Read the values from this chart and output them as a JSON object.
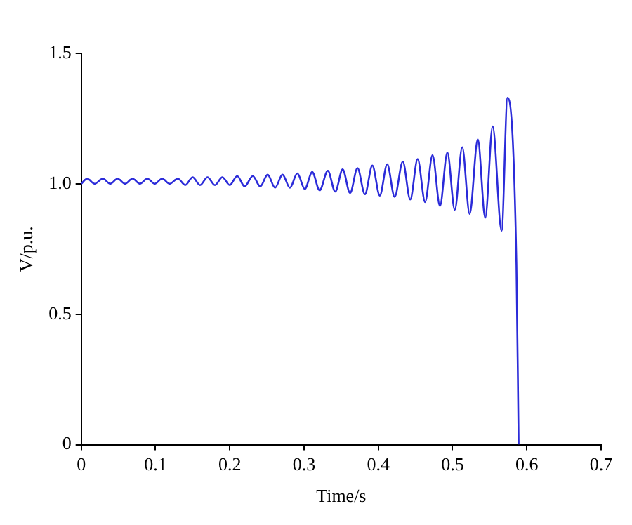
{
  "chart_data": {
    "type": "line",
    "xlabel": "Time/s",
    "ylabel": "V/p.u.",
    "xlim": [
      0,
      0.7
    ],
    "ylim": [
      0,
      1.5
    ],
    "xticks": [
      0,
      0.1,
      0.2,
      0.3,
      0.4,
      0.5,
      0.6,
      0.7
    ],
    "yticks": [
      0,
      0.5,
      {
        "value": 1,
        "label": "1.0"
      },
      1.5
    ],
    "grid": false,
    "legend": false,
    "marker": "none",
    "line_style": "solid",
    "series": [
      {
        "color": "#2b2bd9",
        "x": [
          0,
          0.008,
          0.018,
          0.029,
          0.039,
          0.049,
          0.059,
          0.069,
          0.079,
          0.089,
          0.099,
          0.109,
          0.119,
          0.13,
          0.14,
          0.15,
          0.16,
          0.17,
          0.18,
          0.19,
          0.2,
          0.21,
          0.22,
          0.231,
          0.241,
          0.251,
          0.261,
          0.271,
          0.281,
          0.291,
          0.301,
          0.311,
          0.321,
          0.332,
          0.342,
          0.352,
          0.362,
          0.372,
          0.382,
          0.392,
          0.402,
          0.412,
          0.422,
          0.433,
          0.443,
          0.453,
          0.463,
          0.473,
          0.483,
          0.493,
          0.503,
          0.513,
          0.523,
          0.534,
          0.544,
          0.554,
          0.566,
          0.574,
          0.586,
          0.589
        ],
        "values": [
          1.0,
          1.02,
          1.0,
          1.02,
          1.0,
          1.02,
          1.0,
          1.02,
          1.0,
          1.02,
          1.0,
          1.02,
          1.0,
          1.02,
          0.995,
          1.025,
          0.995,
          1.025,
          0.995,
          1.025,
          0.995,
          1.03,
          0.99,
          1.03,
          0.99,
          1.035,
          0.985,
          1.035,
          0.985,
          1.04,
          0.98,
          1.045,
          0.975,
          1.05,
          0.97,
          1.055,
          0.965,
          1.06,
          0.96,
          1.07,
          0.955,
          1.075,
          0.95,
          1.085,
          0.94,
          1.095,
          0.93,
          1.11,
          0.915,
          1.12,
          0.9,
          1.14,
          0.885,
          1.17,
          0.87,
          1.22,
          0.82,
          1.33,
          0.69,
          0
        ]
      }
    ]
  }
}
